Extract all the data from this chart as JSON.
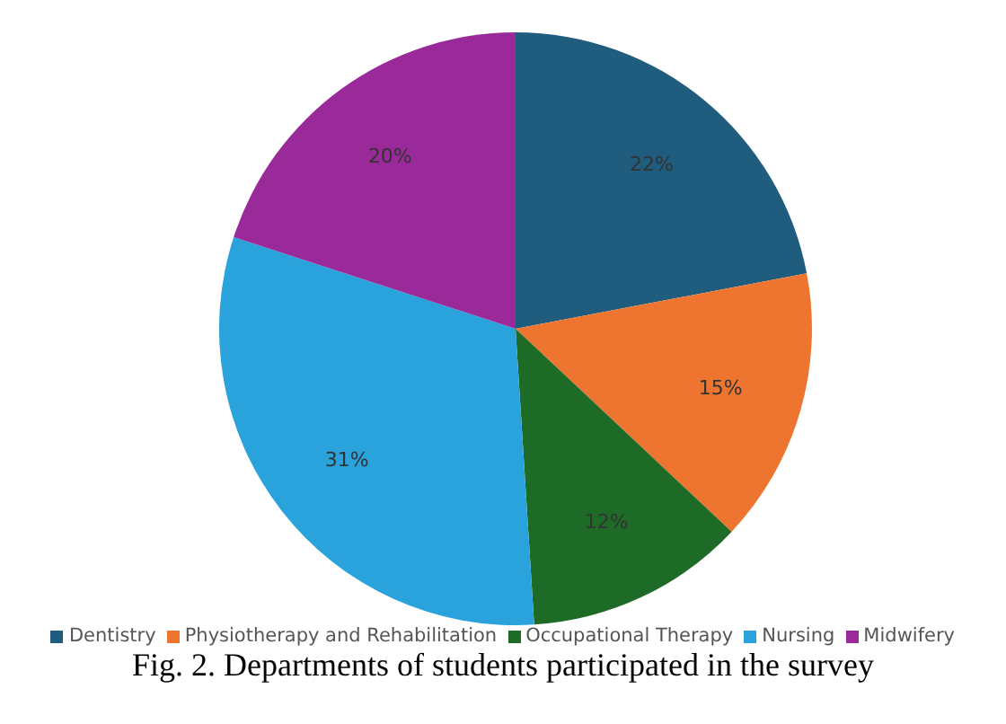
{
  "chart_data": {
    "type": "pie",
    "categories": [
      "Dentistry",
      "Physiotherapy and Rehabilitation",
      "Occupational Therapy",
      "Nursing",
      "Midwifery"
    ],
    "values": [
      22,
      15,
      12,
      31,
      20
    ],
    "colors": [
      "#1f5c7d",
      "#ee7530",
      "#1d6b26",
      "#2aa2dc",
      "#9a2a9a"
    ],
    "value_labels": [
      "22%",
      "15%",
      "12%",
      "31%",
      "20%"
    ],
    "legend": "bottom",
    "annotations": [
      "Fig. 2. Departments of students participated in the survey"
    ]
  }
}
